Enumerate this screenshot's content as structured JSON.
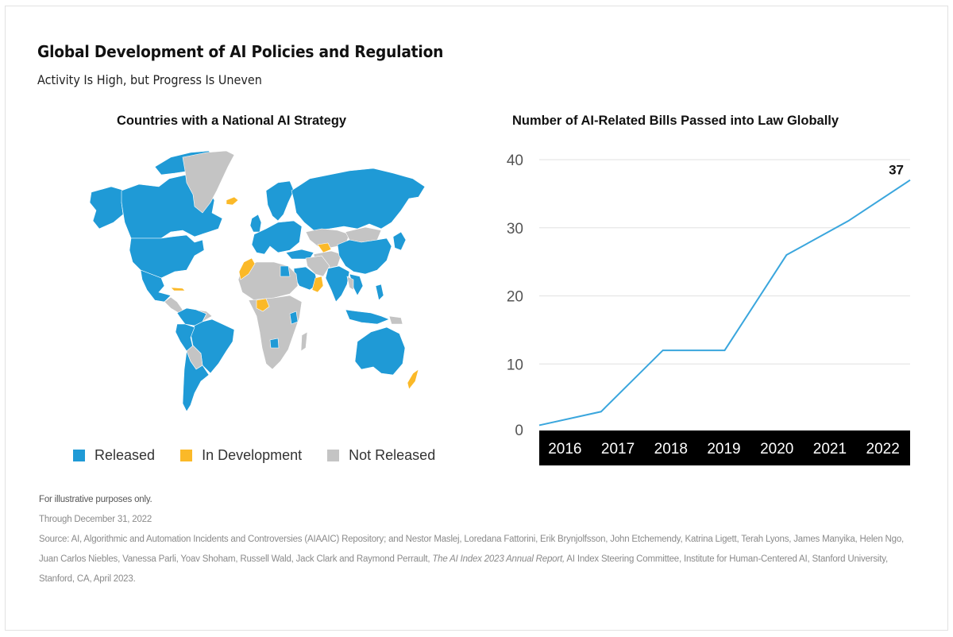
{
  "header": {
    "title": "Global Development of AI Policies and Regulation",
    "subtitle": "Activity Is High, but Progress Is Uneven"
  },
  "map_panel": {
    "title": "Countries with a National AI Strategy",
    "legend": [
      {
        "label": "Released",
        "color": "#1f9ad6"
      },
      {
        "label": "In Development",
        "color": "#fbb928"
      },
      {
        "label": "Not Released",
        "color": "#c4c4c4"
      }
    ]
  },
  "chart_data": {
    "type": "line",
    "title": "Number of AI-Related Bills Passed into Law Globally",
    "categories": [
      "2016",
      "2017",
      "2018",
      "2019",
      "2020",
      "2021",
      "2022"
    ],
    "series": [
      {
        "name": "AI-related bills passed into law",
        "values": [
          1,
          3,
          12,
          12,
          26,
          31,
          37
        ],
        "color": "#3aa6dd"
      }
    ],
    "yticks": [
      0,
      10,
      20,
      30,
      40
    ],
    "ylim": [
      0,
      40
    ],
    "xlabel": "",
    "ylabel": "",
    "grid": true,
    "annotations": [
      {
        "category": "2022",
        "text": "37"
      }
    ]
  },
  "notes": {
    "disclaimer": "For illustrative purposes only.",
    "date": "Through December 31, 2022",
    "source_pre": "Source: AI, Algorithmic and Automation Incidents and Controversies (AIAAIC) Repository; and Nestor Maslej, Loredana Fattorini, Erik Brynjolfsson, John Etchemendy, Katrina Ligett, Terah Lyons, James Manyika, Helen Ngo, Juan Carlos Niebles, Vanessa Parli, Yoav Shoham, Russell Wald, Jack Clark and Raymond Perrault, ",
    "source_italic": "The AI Index 2023 Annual Report,",
    "source_post": "  AI Index Steering Committee, Institute for Human-Centered AI, Stanford University, Stanford, CA, April 2023."
  }
}
